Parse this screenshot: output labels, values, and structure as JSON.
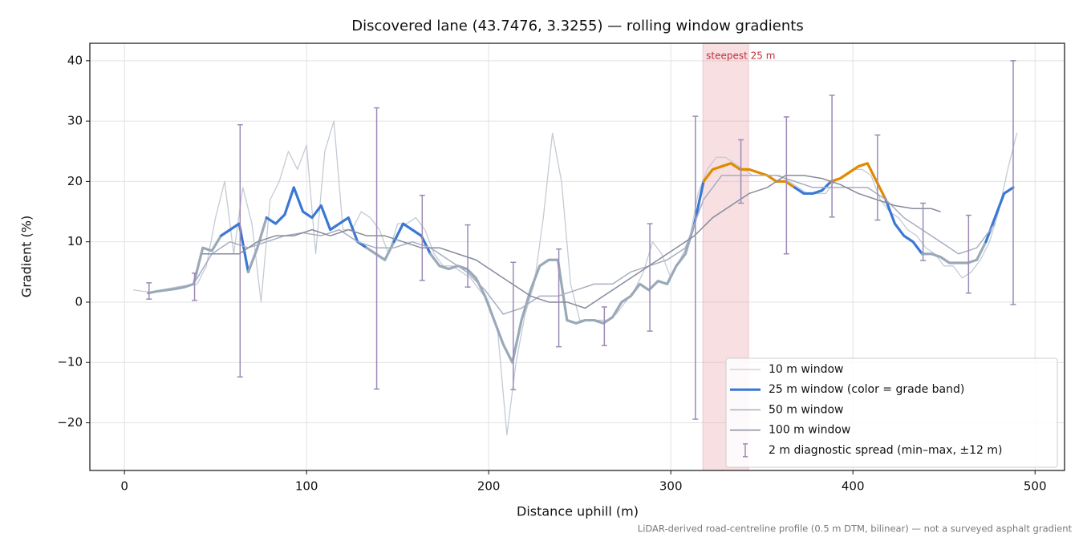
{
  "chart_data": {
    "type": "line",
    "title": "Discovered lane (43.7476, 3.3255) — rolling window gradients",
    "xlabel": "Distance uphill (m)",
    "ylabel": "Gradient (%)",
    "footnote": "LiDAR-derived road-centreline profile (0.5 m DTM, bilinear) — not a surveyed asphalt gradient",
    "xlim": [
      -19,
      516.2
    ],
    "ylim": [
      -27.9,
      42.9
    ],
    "xticks": [
      0,
      100,
      200,
      300,
      400,
      500
    ],
    "yticks": [
      {
        "value": -20,
        "label": "−20"
      },
      {
        "value": -10,
        "label": "−10"
      },
      0,
      10,
      20,
      30,
      40
    ],
    "grid": true,
    "legend": "lower right",
    "highlight": {
      "start": 317.6,
      "end": 342.7,
      "label": "steepest 25 m",
      "color": "#e7a4ab",
      "text_color": "#c0303a"
    },
    "series": [
      {
        "name": "10 m window",
        "color": "#c4cbd5",
        "x": [
          5,
          10,
          15,
          20,
          25,
          30,
          35,
          40,
          45,
          50,
          55,
          60,
          65,
          70,
          75,
          80,
          85,
          90,
          95,
          100,
          105,
          110,
          115,
          120,
          125,
          130,
          135,
          140,
          145,
          150,
          155,
          160,
          165,
          170,
          175,
          180,
          185,
          190,
          195,
          200,
          205,
          210,
          215,
          220,
          225,
          230,
          235,
          240,
          245,
          250,
          255,
          260,
          265,
          270,
          275,
          280,
          285,
          290,
          295,
          300,
          305,
          310,
          315,
          320,
          325,
          330,
          335,
          340,
          345,
          350,
          355,
          360,
          365,
          370,
          375,
          380,
          385,
          390,
          395,
          400,
          405,
          410,
          415,
          420,
          425,
          430,
          435,
          440,
          445,
          450,
          455,
          460,
          465,
          470,
          475,
          480,
          485,
          490
        ],
        "values": [
          2,
          1.8,
          1.6,
          2,
          2.3,
          2.6,
          2.8,
          3,
          6,
          14,
          20,
          8,
          19,
          13,
          0,
          17,
          20,
          25,
          22,
          26,
          8,
          25,
          30,
          12,
          12,
          15,
          14,
          12,
          8,
          13,
          13,
          14,
          12,
          8,
          6,
          6,
          5,
          4,
          2,
          0,
          -5,
          -22,
          -10,
          -2,
          3,
          14,
          28,
          20,
          3,
          -3,
          -3,
          -3,
          -3,
          -2,
          0,
          2,
          5,
          10,
          8,
          4,
          7,
          10,
          18,
          22,
          24,
          24,
          23,
          22,
          21,
          21,
          21,
          21,
          20,
          19,
          18,
          18,
          18,
          20,
          21,
          22,
          22,
          21,
          17,
          15,
          14,
          12,
          11,
          9,
          8,
          6,
          6,
          4,
          5,
          7,
          10,
          15,
          22,
          28
        ]
      },
      {
        "name": "25 m window (color = grade band)",
        "color": "#3a78d4",
        "grade_bands": {
          "thresholds": [
            10,
            20
          ],
          "colors": [
            "#9aa9b9",
            "#3a78d4",
            "#e08a00"
          ]
        },
        "x": [
          13,
          18,
          23,
          28,
          33,
          38,
          43,
          48,
          53,
          58,
          63,
          68,
          73,
          78,
          83,
          88,
          93,
          98,
          103,
          108,
          113,
          118,
          123,
          128,
          133,
          138,
          143,
          148,
          153,
          158,
          163,
          168,
          173,
          178,
          183,
          188,
          193,
          198,
          203,
          208,
          213,
          218,
          223,
          228,
          233,
          238,
          243,
          248,
          253,
          258,
          263,
          268,
          273,
          278,
          283,
          288,
          293,
          298,
          303,
          308,
          313,
          318,
          323,
          328,
          333,
          338,
          343,
          348,
          353,
          358,
          363,
          368,
          373,
          378,
          383,
          388,
          393,
          398,
          403,
          408,
          413,
          418,
          423,
          428,
          433,
          438,
          443,
          448,
          453,
          458,
          463,
          468,
          473,
          478,
          483,
          488
        ],
        "values": [
          1.5,
          1.8,
          2,
          2.2,
          2.5,
          3,
          9,
          8.5,
          11,
          12,
          13,
          5,
          9,
          14,
          13,
          14.5,
          19,
          15,
          14,
          16,
          12,
          13,
          14,
          10,
          9,
          8,
          7,
          10,
          13,
          12,
          11,
          8,
          6,
          5.5,
          6,
          5.5,
          4,
          1,
          -3,
          -7,
          -10,
          -3,
          2,
          6,
          7,
          7,
          -3,
          -3.5,
          -3,
          -3,
          -3.5,
          -2.5,
          0,
          1,
          3,
          2,
          3.5,
          3,
          6,
          8,
          13,
          20,
          22,
          22.5,
          23,
          22,
          22,
          21.5,
          21,
          20,
          20,
          19,
          18,
          18,
          18.5,
          20,
          20.5,
          21.5,
          22.5,
          23,
          20,
          17,
          13,
          11,
          10,
          8,
          8,
          7.5,
          6.5,
          6.5,
          6.5,
          7,
          10,
          14,
          18,
          19
        ]
      },
      {
        "name": "50 m window",
        "color": "#a6aec0",
        "x": [
          38,
          48,
          58,
          68,
          78,
          88,
          98,
          108,
          118,
          128,
          138,
          148,
          158,
          168,
          178,
          188,
          198,
          208,
          218,
          228,
          238,
          248,
          258,
          268,
          278,
          288,
          298,
          308,
          318,
          328,
          338,
          348,
          358,
          368,
          378,
          388,
          398,
          408,
          418,
          428,
          438,
          448,
          458,
          468,
          478
        ],
        "values": [
          3,
          8,
          10,
          9,
          10,
          11,
          11.5,
          11,
          12,
          10,
          9,
          9,
          10,
          9,
          7,
          5,
          2,
          -2,
          -1,
          1,
          1,
          2,
          3,
          3,
          5,
          6,
          7,
          9,
          17,
          21,
          21,
          21,
          21,
          20,
          19,
          19,
          19,
          19,
          17,
          14,
          12,
          10,
          8,
          9,
          13
        ]
      },
      {
        "name": "100 m window",
        "color": "#868b9b",
        "x": [
          43,
          53,
          63,
          73,
          83,
          93,
          103,
          113,
          123,
          133,
          143,
          153,
          163,
          173,
          183,
          193,
          203,
          213,
          223,
          233,
          243,
          253,
          263,
          273,
          283,
          293,
          303,
          313,
          323,
          333,
          343,
          353,
          363,
          373,
          383,
          393,
          403,
          413,
          423,
          433,
          443,
          448
        ],
        "values": [
          8,
          8,
          8,
          10,
          11,
          11,
          12,
          11,
          12,
          11,
          11,
          10,
          9,
          9,
          8,
          7,
          5,
          3,
          1,
          0,
          0,
          -1,
          1,
          3,
          5,
          7,
          9,
          11,
          14,
          16,
          18,
          19,
          21,
          21,
          20.5,
          19.5,
          18,
          17,
          16,
          15.5,
          15.5,
          15
        ]
      }
    ],
    "spread": {
      "name": "2 m diagnostic spread (min–max, ±12 m)",
      "color": "#9b8bb5",
      "x": [
        13.5,
        38.5,
        63.5,
        138.5,
        163.5,
        188.5,
        213.5,
        238.5,
        263.5,
        288.5,
        313.5,
        338.5,
        363.5,
        388.5,
        413.5,
        438.5,
        463.5,
        488
      ],
      "low": [
        0.5,
        0.3,
        -12.4,
        -14.4,
        3.6,
        2.5,
        -14.5,
        -7.4,
        -7.2,
        -4.8,
        -19.4,
        16.4,
        8,
        14.1,
        13.6,
        6.9,
        1.5,
        -0.4
      ],
      "high": [
        3.2,
        4.8,
        29.4,
        32.2,
        17.7,
        12.8,
        6.6,
        8.8,
        -0.8,
        13,
        30.8,
        26.9,
        30.7,
        34.3,
        27.7,
        16.4,
        14.4,
        40
      ]
    }
  }
}
